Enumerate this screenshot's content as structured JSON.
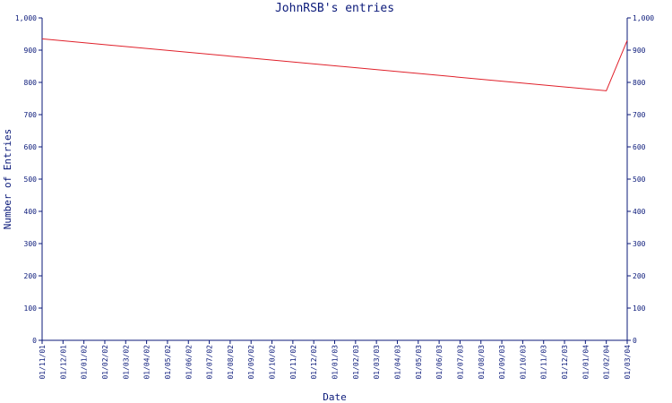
{
  "chart_data": {
    "type": "line",
    "title": "JohnRSB's entries",
    "xlabel": "Date",
    "ylabel": "Number of Entries",
    "ylim": [
      0,
      1000
    ],
    "yticks": [
      0,
      100,
      200,
      300,
      400,
      500,
      600,
      700,
      800,
      900,
      1000
    ],
    "ytick_labels": [
      "0",
      "100",
      "200",
      "300",
      "400",
      "500",
      "600",
      "700",
      "800",
      "900",
      "1,000"
    ],
    "categories": [
      "01/11/01",
      "01/12/01",
      "01/01/02",
      "01/02/02",
      "01/03/02",
      "01/04/02",
      "01/05/02",
      "01/06/02",
      "01/07/02",
      "01/08/02",
      "01/09/02",
      "01/10/02",
      "01/11/02",
      "01/12/02",
      "01/01/03",
      "01/02/03",
      "01/03/03",
      "01/04/03",
      "01/05/03",
      "01/06/03",
      "01/07/03",
      "01/08/03",
      "01/09/03",
      "01/10/03",
      "01/11/03",
      "01/12/03",
      "01/01/04",
      "01/02/04",
      "01/03/04"
    ],
    "series": [
      {
        "color": "#e0202a",
        "points": [
          {
            "x": "01/11/01",
            "y": 935
          },
          {
            "x": "01/02/04",
            "y": 774
          },
          {
            "x": "01/03/04",
            "y": 930
          }
        ]
      }
    ],
    "right_axis": true,
    "grid": false
  }
}
